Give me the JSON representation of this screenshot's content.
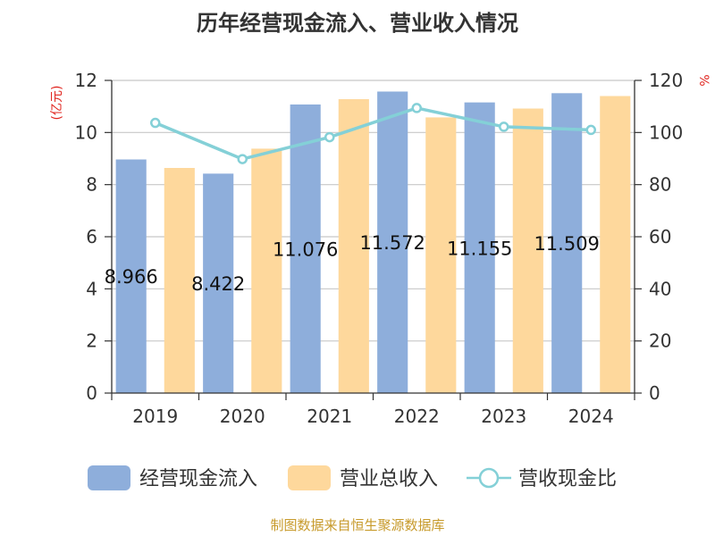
{
  "chart_data": {
    "type": "bar",
    "title": "历年经营现金流入、营业收入情况",
    "categories": [
      "2019",
      "2020",
      "2021",
      "2022",
      "2023",
      "2024"
    ],
    "series": [
      {
        "name": "经营现金流入",
        "type": "bar",
        "axis": "left",
        "color": "#8eaedb",
        "values": [
          8.966,
          8.422,
          11.076,
          11.572,
          11.155,
          11.509
        ],
        "labels": [
          "8.966",
          "8.422",
          "11.076",
          "11.572",
          "11.155",
          "11.509"
        ]
      },
      {
        "name": "营业总收入",
        "type": "bar",
        "axis": "left",
        "color": "#fed89c",
        "values": [
          8.64,
          9.38,
          11.28,
          10.58,
          10.92,
          11.4
        ]
      },
      {
        "name": "营收现金比",
        "type": "line",
        "axis": "right",
        "color": "#84d0d7",
        "values": [
          103.7,
          89.8,
          98.2,
          109.4,
          102.2,
          101.0
        ]
      }
    ],
    "y_left": {
      "label": "(亿元)",
      "ylim": [
        0,
        12
      ],
      "ticks": [
        0,
        2,
        4,
        6,
        8,
        10,
        12
      ]
    },
    "y_right": {
      "label": "%",
      "ylim": [
        0,
        120
      ],
      "ticks": [
        0,
        20,
        40,
        60,
        80,
        100,
        120
      ]
    },
    "grid": true,
    "legend_position": "bottom"
  },
  "source": "制图数据来自恒生聚源数据库"
}
